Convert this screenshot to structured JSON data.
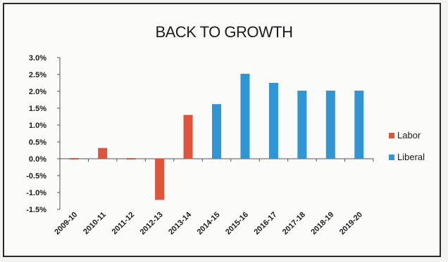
{
  "chart_data": {
    "type": "bar",
    "title": "BACK TO GROWTH",
    "xlabel": "",
    "ylabel": "",
    "ylim": [
      -1.5,
      3.0
    ],
    "yticks": [
      "3.0%",
      "2.5%",
      "2.0%",
      "1.5%",
      "1.0%",
      "0.5%",
      "0.0%",
      "-0.5%",
      "-1.0%",
      "-1.5%"
    ],
    "categories": [
      "2009-10",
      "2010-11",
      "2011-12",
      "2012-13",
      "2013-14",
      "2014-15",
      "2015-16",
      "2016-17",
      "2017-18",
      "2018-19",
      "2019-20"
    ],
    "series": [
      {
        "name": "Labor",
        "color": "#e0553a",
        "values": [
          0.02,
          0.32,
          0.02,
          -1.22,
          1.3,
          null,
          null,
          null,
          null,
          null,
          null
        ]
      },
      {
        "name": "Liberal",
        "color": "#2e96d4",
        "values": [
          null,
          null,
          null,
          null,
          null,
          1.62,
          2.52,
          2.25,
          2.02,
          2.02,
          2.02
        ]
      }
    ],
    "grid": false,
    "legend": "right"
  }
}
